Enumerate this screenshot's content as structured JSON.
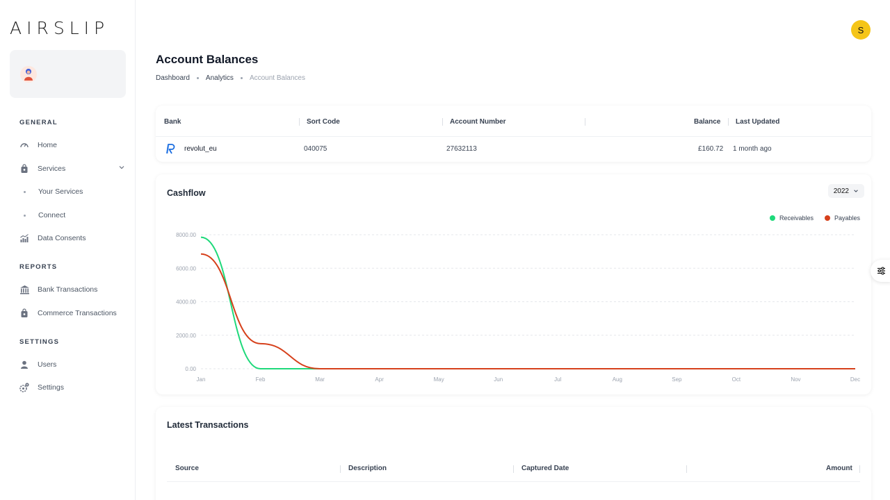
{
  "app": {
    "logo": "AIRSLIP"
  },
  "sidebar": {
    "sections": [
      {
        "label": "GENERAL"
      },
      {
        "label": "REPORTS"
      },
      {
        "label": "SETTINGS"
      }
    ],
    "items": {
      "home": "Home",
      "services": "Services",
      "your_services": "Your Services",
      "connect": "Connect",
      "data_consents": "Data Consents",
      "bank_transactions": "Bank Transactions",
      "commerce_transactions": "Commerce Transactions",
      "users": "Users",
      "settings": "Settings"
    }
  },
  "header": {
    "avatar_initial": "S"
  },
  "page": {
    "title": "Account Balances",
    "breadcrumb": [
      "Dashboard",
      "Analytics",
      "Account Balances"
    ]
  },
  "accounts_table": {
    "columns": [
      "Bank",
      "Sort Code",
      "Account Number",
      "Balance",
      "Last Updated"
    ],
    "rows": [
      {
        "bank": "revolut_eu",
        "sort_code": "040075",
        "account_number": "27632113",
        "balance": "£160.72",
        "last_updated": "1 month ago"
      }
    ]
  },
  "cashflow": {
    "title": "Cashflow",
    "year": "2022"
  },
  "chart_data": {
    "type": "line",
    "title": "Cashflow",
    "categories": [
      "Jan",
      "Feb",
      "Mar",
      "Apr",
      "May",
      "Jun",
      "Jul",
      "Aug",
      "Sep",
      "Oct",
      "Nov",
      "Dec"
    ],
    "y_ticks": [
      "8000.00",
      "6000.00",
      "4000.00",
      "2000.00",
      "0.00"
    ],
    "ylim": [
      0,
      8000
    ],
    "grid": true,
    "legend_position": "top-right",
    "series": [
      {
        "name": "Receivables",
        "color": "#1ed97a",
        "values": [
          7850,
          0,
          0,
          0,
          0,
          0,
          0,
          0,
          0,
          0,
          0,
          0
        ]
      },
      {
        "name": "Payables",
        "color": "#d6401b",
        "values": [
          6850,
          1500,
          0,
          0,
          0,
          0,
          0,
          0,
          0,
          0,
          0,
          0
        ]
      }
    ]
  },
  "latest": {
    "title": "Latest Transactions",
    "columns": [
      "Source",
      "Description",
      "Captured Date",
      "Amount"
    ]
  }
}
